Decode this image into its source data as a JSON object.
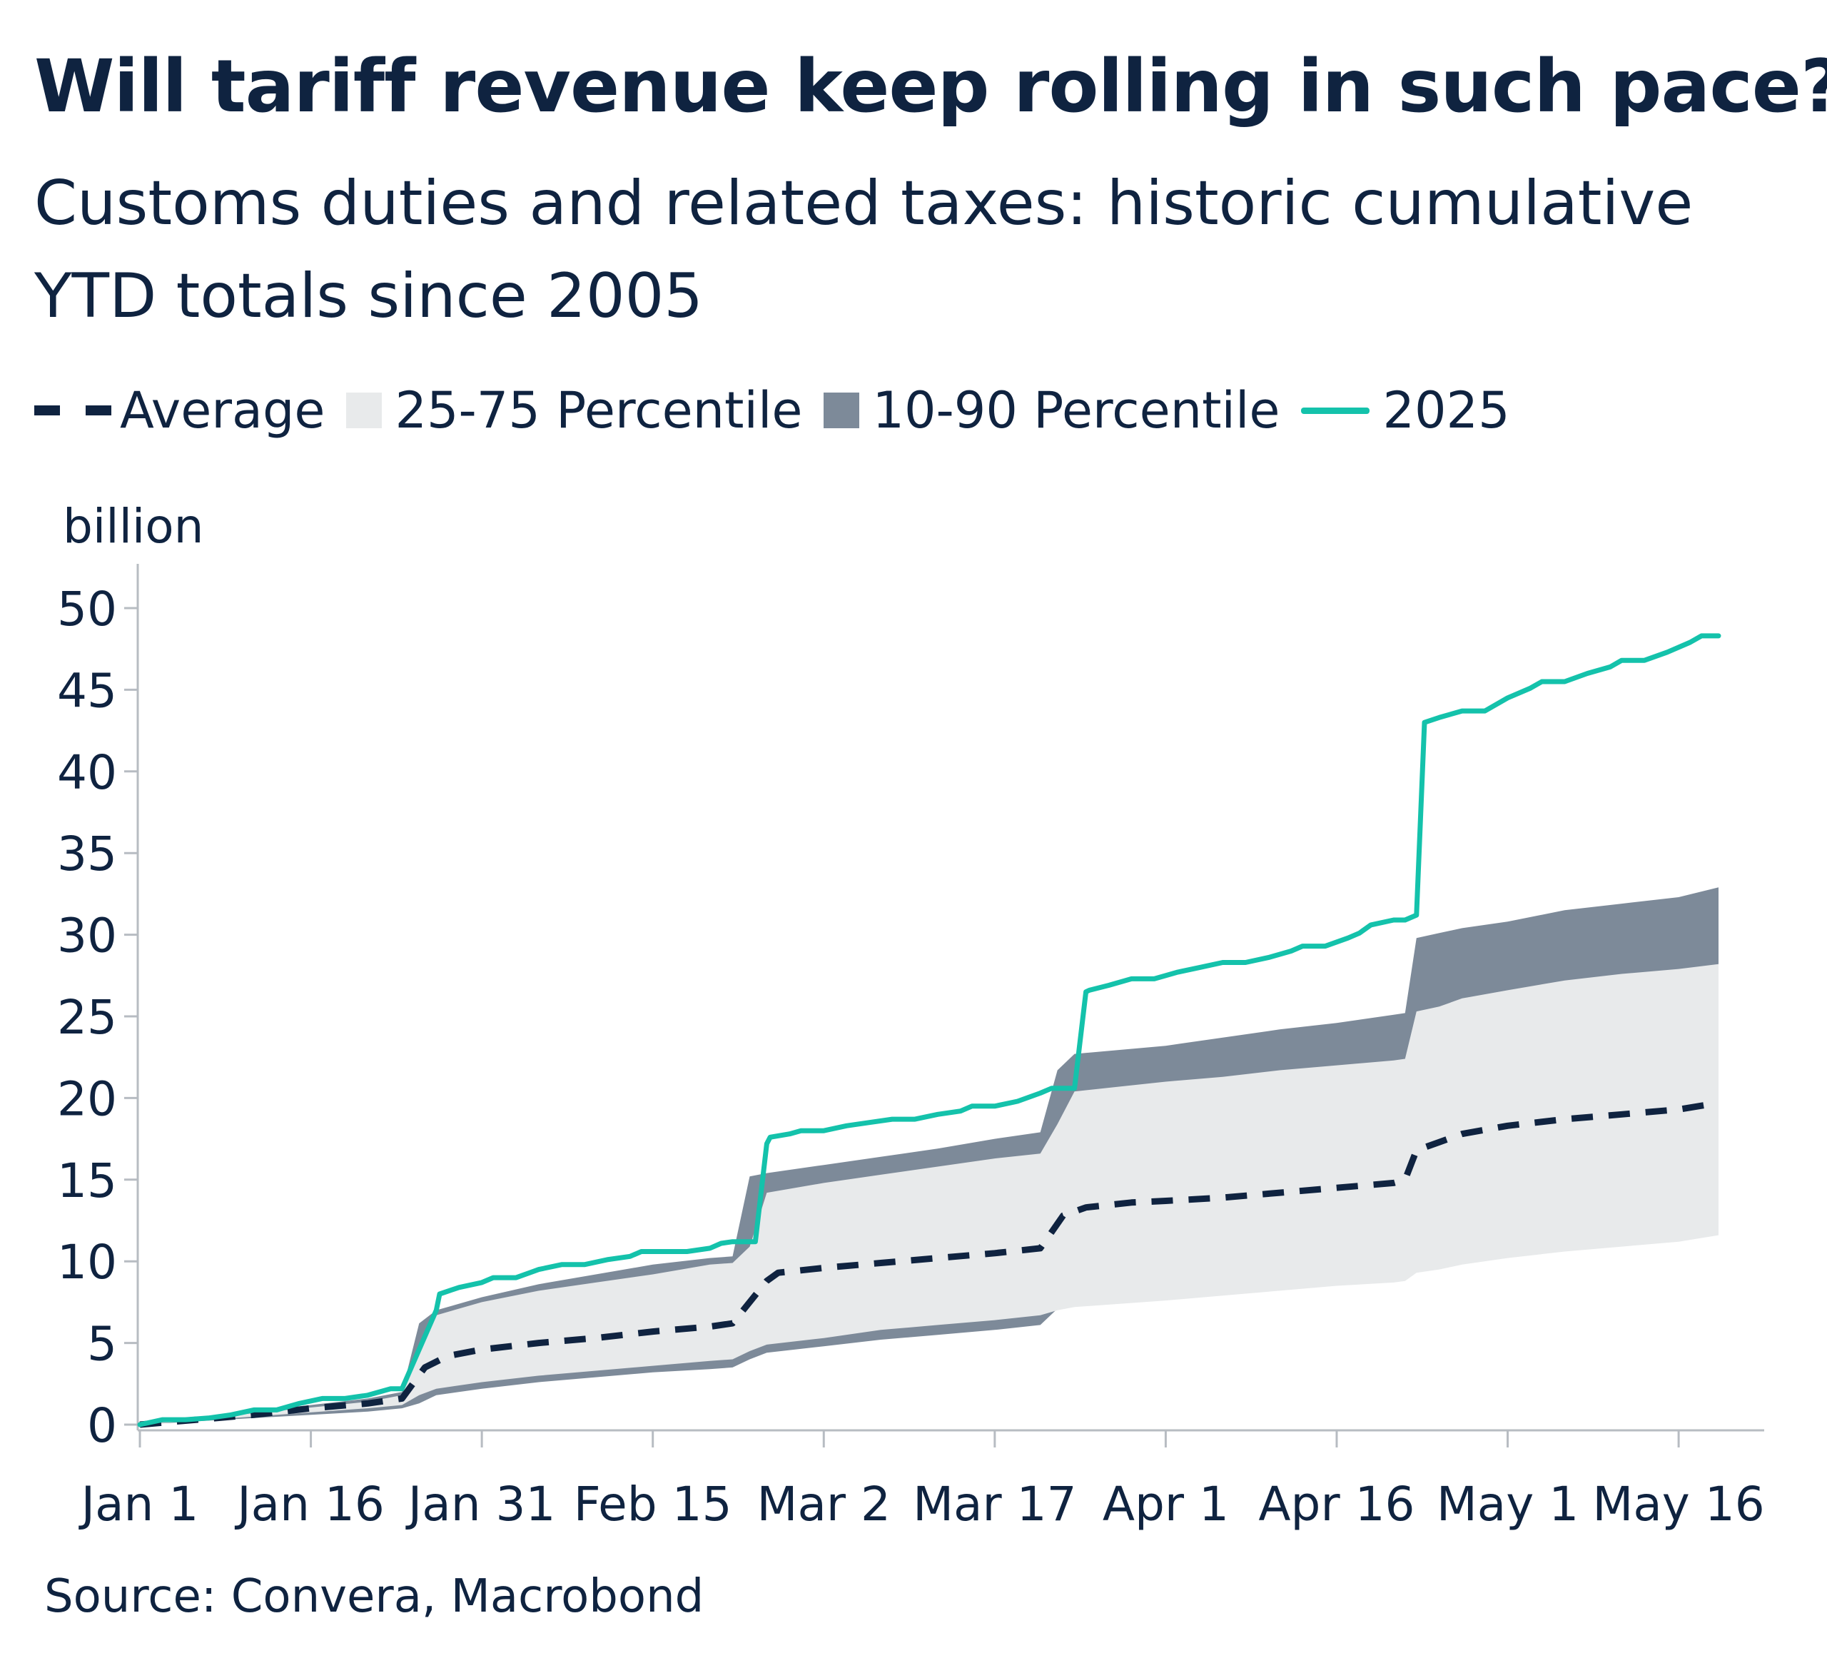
{
  "title": "Will tariff revenue keep rolling in such pace?",
  "subtitle": "Customs duties and related taxes: historic cumulative YTD totals since 2005",
  "legend": {
    "average": "Average",
    "p25_75": "25-75 Percentile",
    "p10_90": "10-90 Percentile",
    "y2025": "2025"
  },
  "source": "Source: Convera, Macrobond",
  "colors": {
    "line2025": "#14c2ab",
    "average": "#0f2340",
    "band10_90": "#7d8a99",
    "band25_75": "#e8eaeb",
    "axis": "#b7bcc2",
    "text": "#0f2340"
  },
  "chart_data": {
    "type": "line",
    "title": "Will tariff revenue keep rolling in such pace?",
    "subtitle": "Customs duties and related taxes: historic cumulative YTD totals since 2005",
    "xlabel": "",
    "ylabel": "billion",
    "x_unit": "day of year (0 = Jan 1)",
    "xlim": [
      0,
      139
    ],
    "ylim": [
      0,
      50
    ],
    "y_ticks": [
      0,
      5,
      10,
      15,
      20,
      25,
      30,
      35,
      40,
      45,
      50
    ],
    "x_ticks": [
      {
        "day": 0,
        "label": "Jan 1"
      },
      {
        "day": 15,
        "label": "Jan 16"
      },
      {
        "day": 30,
        "label": "Jan 31"
      },
      {
        "day": 45,
        "label": "Feb 15"
      },
      {
        "day": 60,
        "label": "Mar 2"
      },
      {
        "day": 75,
        "label": "Mar 17"
      },
      {
        "day": 90,
        "label": "Apr 1"
      },
      {
        "day": 105,
        "label": "Apr 16"
      },
      {
        "day": 120,
        "label": "May 1"
      },
      {
        "day": 135,
        "label": "May 16"
      }
    ],
    "grid": false,
    "legend_position": "top",
    "series": [
      {
        "name": "2025",
        "style": "line",
        "points": [
          [
            0,
            0
          ],
          [
            2,
            0.3
          ],
          [
            4,
            0.3
          ],
          [
            6,
            0.4
          ],
          [
            8,
            0.6
          ],
          [
            10,
            0.9
          ],
          [
            12,
            0.9
          ],
          [
            14,
            1.3
          ],
          [
            16,
            1.6
          ],
          [
            18,
            1.6
          ],
          [
            20,
            1.8
          ],
          [
            22,
            2.2
          ],
          [
            23,
            2.2
          ],
          [
            26,
            7.0
          ],
          [
            26.3,
            8.0
          ],
          [
            28,
            8.4
          ],
          [
            30,
            8.7
          ],
          [
            31,
            9.0
          ],
          [
            33,
            9.0
          ],
          [
            35,
            9.5
          ],
          [
            37,
            9.8
          ],
          [
            39,
            9.8
          ],
          [
            41,
            10.1
          ],
          [
            43,
            10.3
          ],
          [
            44,
            10.6
          ],
          [
            46,
            10.6
          ],
          [
            48,
            10.6
          ],
          [
            50,
            10.8
          ],
          [
            51,
            11.1
          ],
          [
            52,
            11.2
          ],
          [
            53,
            11.2
          ],
          [
            54,
            11.2
          ],
          [
            55,
            17.2
          ],
          [
            55.3,
            17.6
          ],
          [
            57,
            17.8
          ],
          [
            58,
            18.0
          ],
          [
            60,
            18.0
          ],
          [
            62,
            18.3
          ],
          [
            64,
            18.5
          ],
          [
            66,
            18.7
          ],
          [
            68,
            18.7
          ],
          [
            70,
            19.0
          ],
          [
            72,
            19.2
          ],
          [
            73,
            19.5
          ],
          [
            75,
            19.5
          ],
          [
            77,
            19.8
          ],
          [
            79,
            20.3
          ],
          [
            80,
            20.6
          ],
          [
            82,
            20.6
          ],
          [
            83,
            26.5
          ],
          [
            83.3,
            26.6
          ],
          [
            85,
            26.9
          ],
          [
            87,
            27.3
          ],
          [
            89,
            27.3
          ],
          [
            91,
            27.7
          ],
          [
            93,
            28.0
          ],
          [
            95,
            28.3
          ],
          [
            97,
            28.3
          ],
          [
            99,
            28.6
          ],
          [
            101,
            29.0
          ],
          [
            102,
            29.3
          ],
          [
            104,
            29.3
          ],
          [
            106,
            29.8
          ],
          [
            107,
            30.1
          ],
          [
            108,
            30.6
          ],
          [
            110,
            30.9
          ],
          [
            111,
            30.9
          ],
          [
            112,
            31.2
          ],
          [
            112.7,
            43.0
          ],
          [
            114,
            43.3
          ],
          [
            116,
            43.7
          ],
          [
            118,
            43.7
          ],
          [
            120,
            44.5
          ],
          [
            122,
            45.1
          ],
          [
            123,
            45.5
          ],
          [
            125,
            45.5
          ],
          [
            127,
            46.0
          ],
          [
            129,
            46.4
          ],
          [
            130,
            46.8
          ],
          [
            132,
            46.8
          ],
          [
            134,
            47.3
          ],
          [
            136,
            47.9
          ],
          [
            137,
            48.3
          ],
          [
            138.5,
            48.3
          ]
        ]
      },
      {
        "name": "Average",
        "style": "dashed",
        "points": [
          [
            0,
            0
          ],
          [
            5,
            0.3
          ],
          [
            10,
            0.6
          ],
          [
            15,
            1.0
          ],
          [
            20,
            1.3
          ],
          [
            23,
            1.6
          ],
          [
            25,
            3.5
          ],
          [
            27,
            4.2
          ],
          [
            30,
            4.6
          ],
          [
            35,
            5.0
          ],
          [
            40,
            5.3
          ],
          [
            45,
            5.7
          ],
          [
            50,
            6.0
          ],
          [
            52,
            6.2
          ],
          [
            55,
            8.8
          ],
          [
            56,
            9.3
          ],
          [
            60,
            9.6
          ],
          [
            65,
            9.9
          ],
          [
            70,
            10.2
          ],
          [
            75,
            10.5
          ],
          [
            79,
            10.8
          ],
          [
            81,
            12.8
          ],
          [
            83,
            13.3
          ],
          [
            87,
            13.6
          ],
          [
            90,
            13.7
          ],
          [
            95,
            13.9
          ],
          [
            100,
            14.2
          ],
          [
            105,
            14.5
          ],
          [
            110,
            14.8
          ],
          [
            111,
            15.0
          ],
          [
            112,
            16.8
          ],
          [
            114,
            17.3
          ],
          [
            116,
            17.8
          ],
          [
            120,
            18.3
          ],
          [
            125,
            18.7
          ],
          [
            130,
            19.0
          ],
          [
            135,
            19.3
          ],
          [
            138.5,
            19.7
          ]
        ]
      },
      {
        "name": "25-75 Percentile",
        "style": "band",
        "x": [
          0,
          10,
          20,
          23,
          24.5,
          26,
          30,
          35,
          40,
          45,
          50,
          52,
          53.5,
          55,
          60,
          65,
          70,
          75,
          79,
          80.5,
          82,
          90,
          95,
          100,
          105,
          110,
          111,
          112,
          114,
          116,
          120,
          125,
          130,
          135,
          138.5
        ],
        "upper": [
          0,
          0.7,
          1.4,
          1.8,
          4.5,
          6.7,
          7.5,
          8.2,
          8.7,
          9.2,
          9.8,
          9.9,
          10.9,
          14.2,
          14.8,
          15.3,
          15.8,
          16.3,
          16.6,
          18.4,
          20.4,
          21.0,
          21.3,
          21.7,
          22.0,
          22.3,
          22.4,
          25.3,
          25.6,
          26.1,
          26.6,
          27.2,
          27.6,
          27.9,
          28.2
        ],
        "lower": [
          0,
          0.5,
          1.0,
          1.2,
          1.8,
          2.2,
          2.6,
          3.0,
          3.3,
          3.6,
          3.9,
          4.0,
          4.5,
          4.9,
          5.3,
          5.8,
          6.1,
          6.4,
          6.7,
          7.0,
          7.2,
          7.6,
          7.9,
          8.2,
          8.5,
          8.7,
          8.8,
          9.3,
          9.5,
          9.8,
          10.2,
          10.6,
          10.9,
          11.2,
          11.6
        ]
      },
      {
        "name": "10-90 Percentile",
        "style": "band",
        "x": [
          0,
          10,
          20,
          23,
          24.5,
          26,
          30,
          35,
          40,
          45,
          50,
          52,
          53.5,
          55,
          60,
          65,
          70,
          75,
          79,
          80.5,
          82,
          90,
          95,
          100,
          105,
          110,
          111,
          112,
          114,
          116,
          120,
          125,
          130,
          135,
          138.5
        ],
        "upper": [
          0,
          0.8,
          1.6,
          2.0,
          6.2,
          7.0,
          7.8,
          8.6,
          9.2,
          9.8,
          10.2,
          10.3,
          15.2,
          15.4,
          15.9,
          16.4,
          16.9,
          17.5,
          17.9,
          21.7,
          22.7,
          23.2,
          23.7,
          24.2,
          24.6,
          25.1,
          25.2,
          29.8,
          30.1,
          30.4,
          30.8,
          31.5,
          31.9,
          32.3,
          32.9
        ],
        "lower": [
          0,
          0.4,
          0.8,
          1.0,
          1.3,
          1.8,
          2.2,
          2.6,
          2.9,
          3.2,
          3.4,
          3.5,
          4.0,
          4.4,
          4.8,
          5.2,
          5.5,
          5.8,
          6.1,
          7.1,
          7.4,
          7.8,
          8.1,
          8.4,
          8.7,
          9.0,
          9.1,
          9.9,
          10.2,
          10.6,
          11.0,
          11.4,
          11.8,
          12.1,
          12.4
        ]
      }
    ]
  }
}
